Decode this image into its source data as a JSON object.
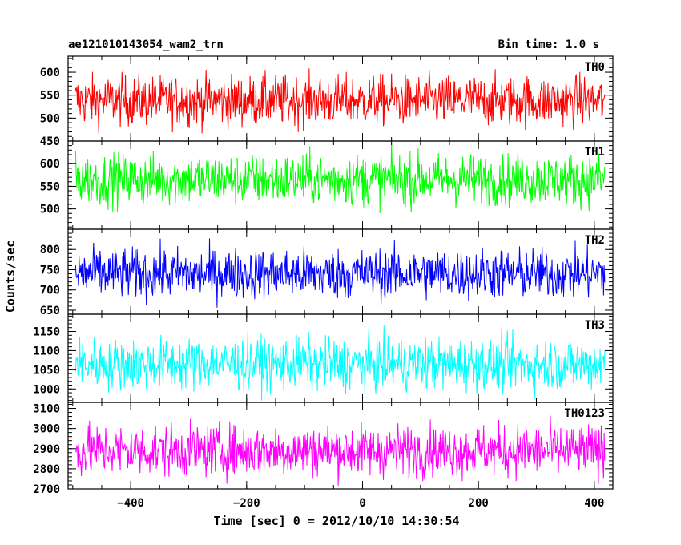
{
  "header": {
    "title": "ae121010143054_wam2_trn",
    "bin_time": "Bin time: 1.0 s"
  },
  "chart_data": {
    "type": "line",
    "xlabel": "Time [sec] 0 = 2012/10/10 14:30:54",
    "ylabel": "Counts/sec",
    "xlim": [
      -508,
      432
    ],
    "x_ticks": [
      -400,
      -200,
      0,
      200,
      400
    ],
    "x_tick_labels": [
      "−400",
      "−200",
      "0",
      "200",
      "400"
    ],
    "x_data_range": [
      -495,
      418
    ],
    "bin_time_s": 1.0,
    "panels": [
      {
        "name": "TH0",
        "color": "#ff0000",
        "ylim": [
          450,
          635
        ],
        "yticks": [
          450,
          500,
          550,
          600
        ],
        "mean": 538,
        "low": 455,
        "high": 632
      },
      {
        "name": "TH1",
        "color": "#00ff00",
        "ylim": [
          455,
          650
        ],
        "yticks": [
          500,
          550,
          600
        ],
        "mean": 565,
        "low": 465,
        "high": 648
      },
      {
        "name": "TH2",
        "color": "#0000ff",
        "ylim": [
          640,
          850
        ],
        "yticks": [
          650,
          700,
          750,
          800
        ],
        "mean": 740,
        "low": 645,
        "high": 845
      },
      {
        "name": "TH3",
        "color": "#00ffff",
        "ylim": [
          965,
          1195
        ],
        "yticks": [
          1000,
          1050,
          1100,
          1150
        ],
        "mean": 1065,
        "low": 970,
        "high": 1190
      },
      {
        "name": "TH0123",
        "color": "#ff00ff",
        "ylim": [
          2700,
          3130
        ],
        "yticks": [
          2700,
          2800,
          2900,
          3000,
          3100
        ],
        "mean": 2890,
        "low": 2710,
        "high": 3125
      }
    ]
  }
}
